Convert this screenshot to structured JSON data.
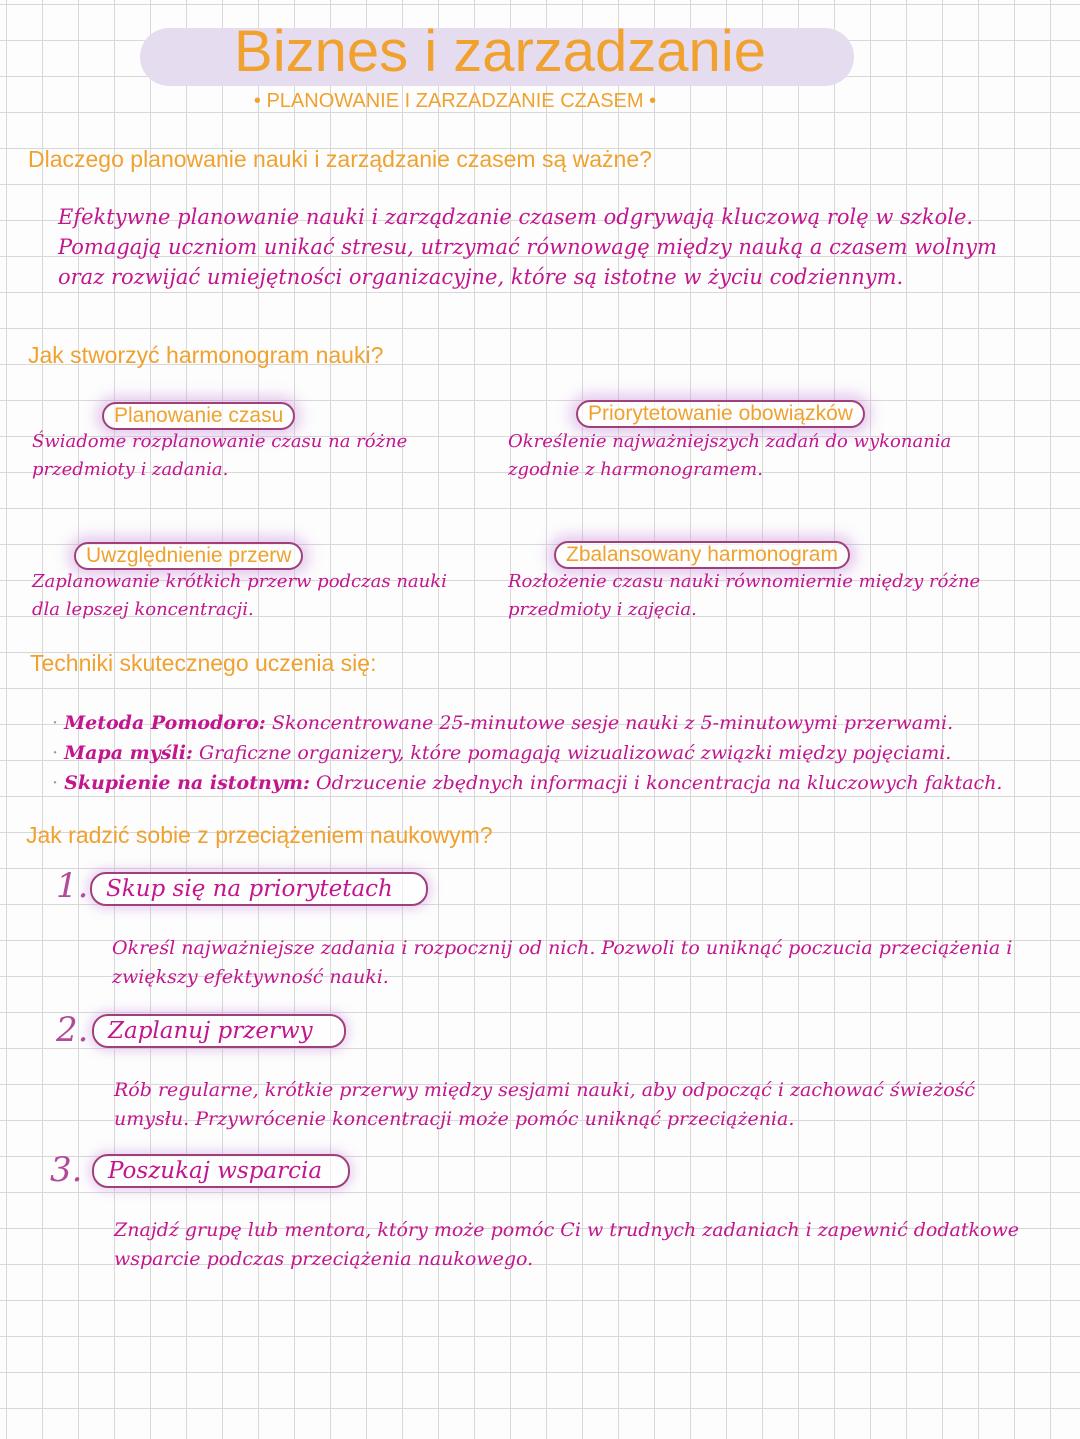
{
  "header": {
    "title": "Biznes i zarzadzanie",
    "subtitle": "PLANOWANIE I ZARZADZANIE CZASEM"
  },
  "sections": [
    {
      "heading": "Dlaczego planowanie nauki i zarządzanie czasem są ważne?",
      "body": "Efektywne planowanie nauki i zarządzanie czasem odgrywają kluczową rolę w szkole. Pomagają uczniom unikać stresu, utrzymać równowagę między nauką a czasem wolnym oraz rozwijać umiejętności organizacyjne, które są istotne w życiu codziennym."
    },
    {
      "heading": "Jak stworzyć harmonogram nauki?",
      "cards": [
        {
          "title": "Planowanie czasu",
          "text": "Świadome rozplanowanie czasu na różne przedmioty i zadania."
        },
        {
          "title": "Priorytetowanie obowiązków",
          "text": "Określenie najważniejszych zadań do wykonania zgodnie z harmonogramem."
        },
        {
          "title": "Uwzględnienie przerw",
          "text": "Zaplanowanie krótkich przerw podczas nauki dla lepszej koncentracji."
        },
        {
          "title": "Zbalansowany harmonogram",
          "text": "Rozłożenie czasu nauki równomiernie między różne przedmioty i zajęcia."
        }
      ]
    },
    {
      "heading": "Techniki skutecznego uczenia się:",
      "items": [
        {
          "term": "Metoda Pomodoro:",
          "text": "Skoncentrowane 25-minutowe sesje nauki z 5-minutowymi przerwami."
        },
        {
          "term": "Mapa myśli:",
          "text": "Graficzne organizery, które pomagają wizualizować związki między pojęciami."
        },
        {
          "term": "Skupienie na istotnym:",
          "text": "Odrzucenie zbędnych informacji i koncentracja na kluczowych faktach."
        }
      ]
    },
    {
      "heading": "Jak radzić sobie z przeciążeniem naukowym?",
      "steps": [
        {
          "number": "1.",
          "title": "Skup się na priorytetach",
          "text": "Określ najważniejsze zadania i rozpocznij od nich. Pozwoli to uniknąć poczucia przeciążenia i zwiększy efektywność nauki."
        },
        {
          "number": "2.",
          "title": "Zaplanuj przerwy",
          "text": "Rób regularne, krótkie przerwy między sesjami nauki, aby odpocząć i zachować świeżość umysłu. Przywrócenie koncentracji może pomóc uniknąć przeciążenia."
        },
        {
          "number": "3.",
          "title": "Poszukaj wsparcia",
          "text": "Znajdź grupę lub mentora, który może pomóc Ci w trudnych zadaniach i zapewnić dodatkowe wsparcie podczas przeciążenia naukowego."
        }
      ]
    }
  ]
}
